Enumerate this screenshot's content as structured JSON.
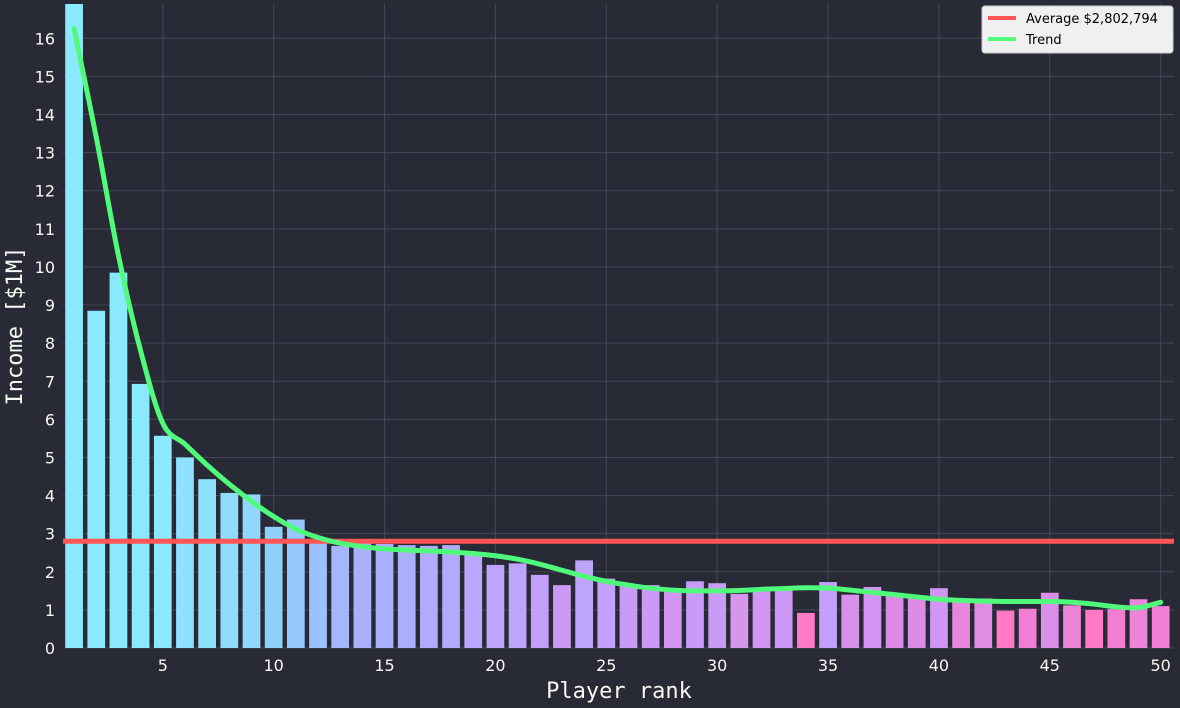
{
  "chart_data": {
    "type": "bar",
    "xlabel": "Player rank",
    "ylabel": "Income [$1M]",
    "x": [
      1,
      2,
      3,
      4,
      5,
      6,
      7,
      8,
      9,
      10,
      11,
      12,
      13,
      14,
      15,
      16,
      17,
      18,
      19,
      20,
      21,
      22,
      23,
      24,
      25,
      26,
      27,
      28,
      29,
      30,
      31,
      32,
      33,
      34,
      35,
      36,
      37,
      38,
      39,
      40,
      41,
      42,
      43,
      44,
      45,
      46,
      47,
      48,
      49,
      50
    ],
    "values": [
      17.0,
      8.85,
      9.85,
      6.93,
      5.57,
      5.0,
      4.43,
      4.07,
      4.03,
      3.18,
      3.37,
      2.8,
      2.68,
      2.75,
      2.73,
      2.7,
      2.68,
      2.7,
      2.45,
      2.18,
      2.22,
      1.92,
      1.65,
      2.3,
      1.82,
      1.62,
      1.65,
      1.47,
      1.75,
      1.7,
      1.42,
      1.55,
      1.55,
      0.92,
      1.73,
      1.4,
      1.6,
      1.38,
      1.38,
      1.57,
      1.22,
      1.3,
      0.98,
      1.03,
      1.45,
      1.12,
      1.0,
      1.02,
      1.28,
      1.1
    ],
    "bar_colors": [
      "#8be9fd",
      "#8be9fd",
      "#8be9fd",
      "#8be9fd",
      "#8be9fd",
      "#8ee2fd",
      "#8ee2fd",
      "#8edcfd",
      "#91d6fd",
      "#92d0fc",
      "#96c7fd",
      "#9ec0fc",
      "#a6b6fc",
      "#abb0fc",
      "#abb0fc",
      "#abb0fc",
      "#b2aafc",
      "#b2aafc",
      "#baa6fc",
      "#bea4fc",
      "#bea4fc",
      "#c1a0fb",
      "#cb9af7",
      "#bea4fc",
      "#c49ffb",
      "#c99bf8",
      "#cb9af7",
      "#d296f2",
      "#c99bf8",
      "#ca9af7",
      "#d796ed",
      "#d296f2",
      "#cd97f5",
      "#ff79c6",
      "#c49ffb",
      "#d890eb",
      "#d296f2",
      "#dd8ce5",
      "#dd8ce5",
      "#cf97f3",
      "#e687dc",
      "#df8ce2",
      "#ff79c6",
      "#f27ed3",
      "#db8ee8",
      "#ed83d6",
      "#ff79c6",
      "#f27ed3",
      "#ea85da",
      "#f27ed3"
    ],
    "trend": [
      16.25,
      13.4,
      10.3,
      7.8,
      5.9,
      5.35,
      4.8,
      4.3,
      3.85,
      3.45,
      3.12,
      2.9,
      2.75,
      2.66,
      2.6,
      2.57,
      2.55,
      2.52,
      2.48,
      2.42,
      2.33,
      2.2,
      2.04,
      1.88,
      1.75,
      1.65,
      1.57,
      1.52,
      1.5,
      1.5,
      1.51,
      1.54,
      1.56,
      1.58,
      1.57,
      1.52,
      1.46,
      1.4,
      1.34,
      1.28,
      1.25,
      1.23,
      1.22,
      1.22,
      1.22,
      1.2,
      1.15,
      1.08,
      1.06,
      1.2
    ],
    "average": 2.802794,
    "xlim": [
      0.5,
      50.6
    ],
    "ylim": [
      0,
      16.9
    ],
    "xticks": [
      5,
      10,
      15,
      20,
      25,
      30,
      35,
      40,
      45,
      50
    ],
    "yticks": [
      0,
      1,
      2,
      3,
      4,
      5,
      6,
      7,
      8,
      9,
      10,
      11,
      12,
      13,
      14,
      15,
      16
    ],
    "legend_position": "top-right",
    "grid": true,
    "colors": {
      "background": "#282a36",
      "grid": "#44475a",
      "average_line": "#ff5555",
      "trend_line": "#50fa7b",
      "text": "#f8f8f2"
    },
    "legend": [
      {
        "label": "Average $2,802,794",
        "color": "#ff5555"
      },
      {
        "label": "Trend",
        "color": "#50fa7b"
      }
    ]
  }
}
